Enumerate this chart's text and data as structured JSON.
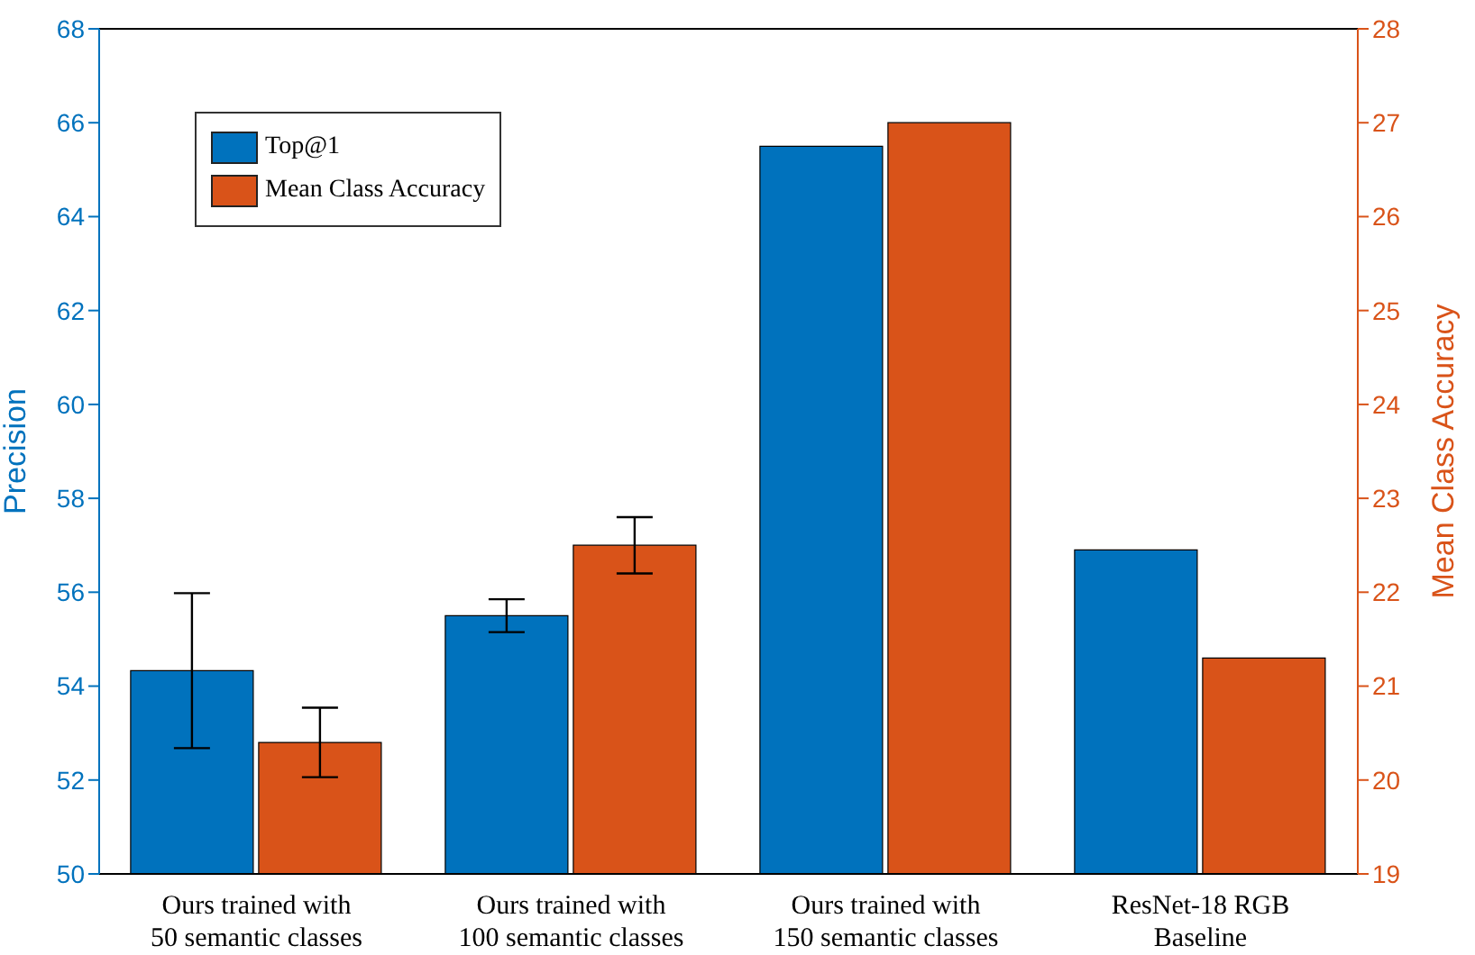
{
  "chart_data": {
    "type": "bar",
    "categories": [
      "Ours trained with\n50 semantic classes",
      "Ours trained with\n100 semantic classes",
      "Ours trained with\n150 semantic classes",
      "ResNet-18 RGB\nBaseline"
    ],
    "series": [
      {
        "name": "Top@1",
        "color": "#0072bd",
        "values": [
          54.33,
          55.5,
          65.5,
          56.9
        ],
        "errors": [
          1.65,
          0.35,
          0,
          0
        ]
      },
      {
        "name": "Mean Class Accuracy",
        "color": "#d95319",
        "axis": "y2",
        "values": [
          20.4,
          22.5,
          27.0,
          21.3
        ],
        "errors": [
          0.37,
          0.3,
          0,
          0
        ]
      }
    ],
    "ylabel": "Precision",
    "y2label": "Mean Class Accuracy",
    "ylim": [
      50,
      68
    ],
    "yticks": [
      50,
      52,
      54,
      56,
      58,
      60,
      62,
      64,
      66,
      68
    ],
    "y2lim": [
      19,
      28
    ],
    "y2ticks": [
      19,
      20,
      21,
      22,
      23,
      24,
      25,
      26,
      27,
      28
    ],
    "legend": "top left",
    "grid": false
  }
}
